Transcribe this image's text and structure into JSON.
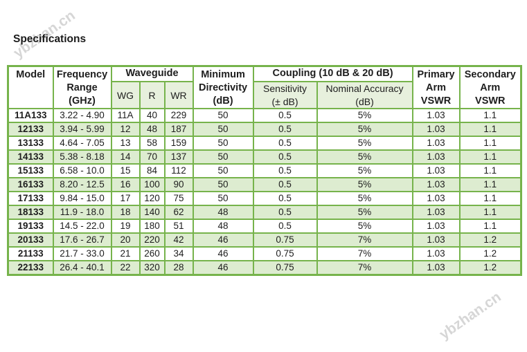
{
  "title": "Specifications",
  "watermark": {
    "text": "ybzhan.cn"
  },
  "colors": {
    "border": "#76b34b",
    "stripe": "#ddecd0",
    "subheader": "#e7f0dd",
    "text": "#1d1d1d"
  },
  "table": {
    "header": {
      "model": "Model",
      "frequency_range": "Frequency\nRange\n(GHz)",
      "waveguide": "Waveguide",
      "wg": "WG",
      "r": "R",
      "wr": "WR",
      "minimum_directivity": "Minimum\nDirectivity\n(dB)",
      "coupling": "Coupling (10 dB & 20 dB)",
      "sensitivity": "Sensitivity\n(± dB)",
      "nominal_accuracy": "Nominal Accuracy\n(dB)",
      "primary_arm_vswr": "Primary\nArm\nVSWR",
      "secondary_arm_vswr": "Secondary\nArm\nVSWR"
    },
    "column_keys": [
      "cell-model",
      "cell-frequency-range",
      "cell-wg",
      "cell-r",
      "cell-wr",
      "cell-minimum-directivity",
      "cell-sensitivity",
      "cell-nominal-accuracy",
      "cell-primary-arm-vswr",
      "cell-secondary-arm-vswr"
    ],
    "rows": [
      [
        "11A133",
        "3.22 - 4.90",
        "11A",
        "40",
        "229",
        "50",
        "0.5",
        "5%",
        "1.03",
        "1.1"
      ],
      [
        "12133",
        "3.94 - 5.99",
        "12",
        "48",
        "187",
        "50",
        "0.5",
        "5%",
        "1.03",
        "1.1"
      ],
      [
        "13133",
        "4.64 - 7.05",
        "13",
        "58",
        "159",
        "50",
        "0.5",
        "5%",
        "1.03",
        "1.1"
      ],
      [
        "14133",
        "5.38 - 8.18",
        "14",
        "70",
        "137",
        "50",
        "0.5",
        "5%",
        "1.03",
        "1.1"
      ],
      [
        "15133",
        "6.58 - 10.0",
        "15",
        "84",
        "112",
        "50",
        "0.5",
        "5%",
        "1.03",
        "1.1"
      ],
      [
        "16133",
        "8.20 - 12.5",
        "16",
        "100",
        "90",
        "50",
        "0.5",
        "5%",
        "1.03",
        "1.1"
      ],
      [
        "17133",
        "9.84 - 15.0",
        "17",
        "120",
        "75",
        "50",
        "0.5",
        "5%",
        "1.03",
        "1.1"
      ],
      [
        "18133",
        "11.9 - 18.0",
        "18",
        "140",
        "62",
        "48",
        "0.5",
        "5%",
        "1.03",
        "1.1"
      ],
      [
        "19133",
        "14.5 - 22.0",
        "19",
        "180",
        "51",
        "48",
        "0.5",
        "5%",
        "1.03",
        "1.1"
      ],
      [
        "20133",
        "17.6 - 26.7",
        "20",
        "220",
        "42",
        "46",
        "0.75",
        "7%",
        "1.03",
        "1.2"
      ],
      [
        "21133",
        "21.7 - 33.0",
        "21",
        "260",
        "34",
        "46",
        "0.75",
        "7%",
        "1.03",
        "1.2"
      ],
      [
        "22133",
        "26.4 - 40.1",
        "22",
        "320",
        "28",
        "46",
        "0.75",
        "7%",
        "1.03",
        "1.2"
      ]
    ]
  }
}
